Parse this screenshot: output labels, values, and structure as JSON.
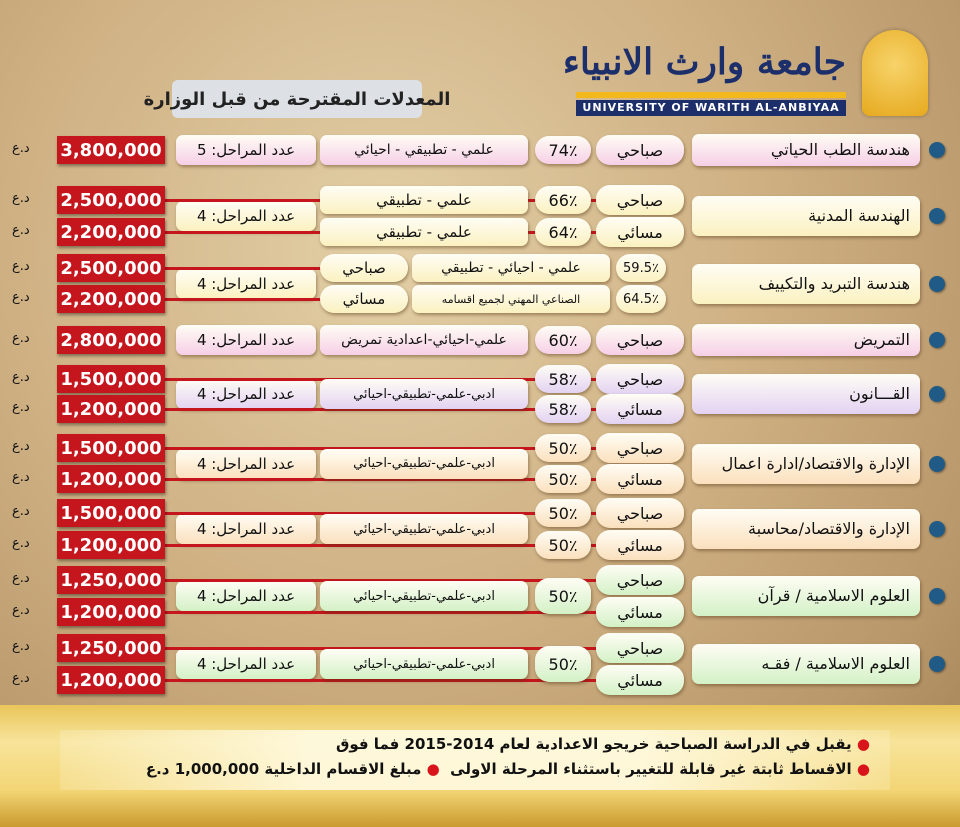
{
  "header": {
    "title": "المعدلات المقترحة من قبل الوزارة",
    "logo_arabic": "جامعة وارث الانبياء",
    "logo_english": "UNIVERSITY OF WARITH AL-ANBIYAA"
  },
  "currency": "د.ع",
  "colors": {
    "price": "#c4161c",
    "bullet": "#1f5b86",
    "pink": "#f6cfe6",
    "cream": "#fbf1c0",
    "lavender": "#e3d2f2",
    "peach": "#fbe0bd",
    "green": "#d3f1c6"
  },
  "departments": [
    {
      "name": "هندسة الطب الحياتي",
      "color": "pink",
      "layout": "single",
      "stages": "عدد المراحل: 5",
      "streams": "علمي - تطبيقي - احيائي",
      "rows": [
        {
          "shift": "صباحي",
          "percent": "74٪",
          "price": "3,800,000"
        }
      ]
    },
    {
      "name": "الهندسة المدنية",
      "color": "cream",
      "layout": "split",
      "stages": "عدد المراحل: 4",
      "rows": [
        {
          "shift": "صباحي",
          "percent": "66٪",
          "streams": "علمي - تطبيقي",
          "price": "2,500,000"
        },
        {
          "shift": "مسائي",
          "percent": "64٪",
          "streams": "علمي - تطبيقي",
          "price": "2,200,000"
        }
      ]
    },
    {
      "name": "هندسة التبريد والتكييف",
      "color": "cream",
      "layout": "refrig",
      "stages": "عدد المراحل: 4",
      "rows": [
        {
          "shift": "صباحي",
          "percent": "59.5٪",
          "streams": "علمي - احيائي - تطبيقي",
          "price": "2,500,000"
        },
        {
          "shift": "مسائي",
          "percent": "64.5٪",
          "streams": "الصناعي المهني لجميع اقسامه",
          "price": "2,200,000"
        }
      ]
    },
    {
      "name": "التمريض",
      "color": "pink",
      "layout": "single",
      "stages": "عدد المراحل: 4",
      "streams": "علمي-احيائي-اعدادية تمريض",
      "rows": [
        {
          "shift": "صباحي",
          "percent": "60٪",
          "price": "2,800,000"
        }
      ]
    },
    {
      "name": "القـــانون",
      "color": "lavender",
      "layout": "split",
      "stages": "عدد المراحل: 4",
      "streams": "ادبي-علمي-تطبيقي-احيائي",
      "rows": [
        {
          "shift": "صباحي",
          "percent": "58٪",
          "price": "1,500,000"
        },
        {
          "shift": "مسائي",
          "percent": "58٪",
          "price": "1,200,000"
        }
      ]
    },
    {
      "name": "الإدارة والاقتصاد/ادارة اعمال",
      "color": "peach",
      "layout": "split",
      "stages": "عدد المراحل: 4",
      "streams": "ادبي-علمي-تطبيقي-احيائي",
      "rows": [
        {
          "shift": "صباحي",
          "percent": "50٪",
          "price": "1,500,000"
        },
        {
          "shift": "مسائي",
          "percent": "50٪",
          "price": "1,200,000"
        }
      ]
    },
    {
      "name": "الإدارة والاقتصاد/محاسبة",
      "color": "peach",
      "layout": "split",
      "stages": "عدد المراحل: 4",
      "streams": "ادبي-علمي-تطبيقي-احيائي",
      "rows": [
        {
          "shift": "صباحي",
          "percent": "50٪",
          "price": "1,500,000"
        },
        {
          "shift": "مسائي",
          "percent": "50٪",
          "price": "1,200,000"
        }
      ]
    },
    {
      "name": "العلوم الاسلامية / قرآن",
      "color": "green",
      "layout": "shared",
      "stages": "عدد المراحل: 4",
      "streams": "ادبي-علمي-تطبيقي-احيائي",
      "percent": "50٪",
      "rows": [
        {
          "shift": "صباحي",
          "price": "1,250,000"
        },
        {
          "shift": "مسائي",
          "price": "1,200,000"
        }
      ]
    },
    {
      "name": "العلوم الاسلامية / فقـه",
      "color": "green",
      "layout": "shared",
      "stages": "عدد المراحل: 4",
      "streams": "ادبي-علمي-تطبيقي-احيائي",
      "percent": "50٪",
      "rows": [
        {
          "shift": "صباحي",
          "price": "1,250,000"
        },
        {
          "shift": "مسائي",
          "price": "1,200,000"
        }
      ]
    }
  ],
  "notes": {
    "line1": "يقبل في الدراسة الصباحية خريجو الاعدادية لعام 2014-2015 فما فوق",
    "line2a": "الاقساط ثابتة غير قابلة للتغيير باستثناء المرحلة الاولى",
    "line2b": "مبلغ الاقسام الداخلية 1,000,000 د.ع"
  }
}
